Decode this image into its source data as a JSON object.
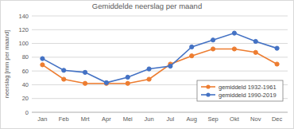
{
  "chart_data": {
    "type": "line",
    "title": "Gemiddelde neerslag per maand",
    "y_label": "neerslag [mm per maand]",
    "categories": [
      "Jan",
      "Feb",
      "Mrt",
      "Apr",
      "Mei",
      "Jun",
      "Jul",
      "Aug",
      "Sep",
      "Okt",
      "Nov",
      "Dec"
    ],
    "series": [
      {
        "name": "gemiddeld 1932-1961",
        "color": "#ed7d31",
        "marker": "circle",
        "values": [
          69,
          48,
          42,
          42,
          42,
          48,
          70,
          82,
          92,
          92,
          87,
          70
        ]
      },
      {
        "name": "gemiddeld 1990-2019",
        "color": "#4472c4",
        "marker": "circle",
        "values": [
          78,
          61,
          58,
          43,
          51,
          63,
          67,
          95,
          105,
          115,
          103,
          93
        ]
      }
    ],
    "ylim": [
      0,
      140
    ],
    "yticks": [
      0,
      20,
      40,
      60,
      80,
      100,
      120,
      140
    ],
    "grid": true,
    "legend": "lower right"
  }
}
